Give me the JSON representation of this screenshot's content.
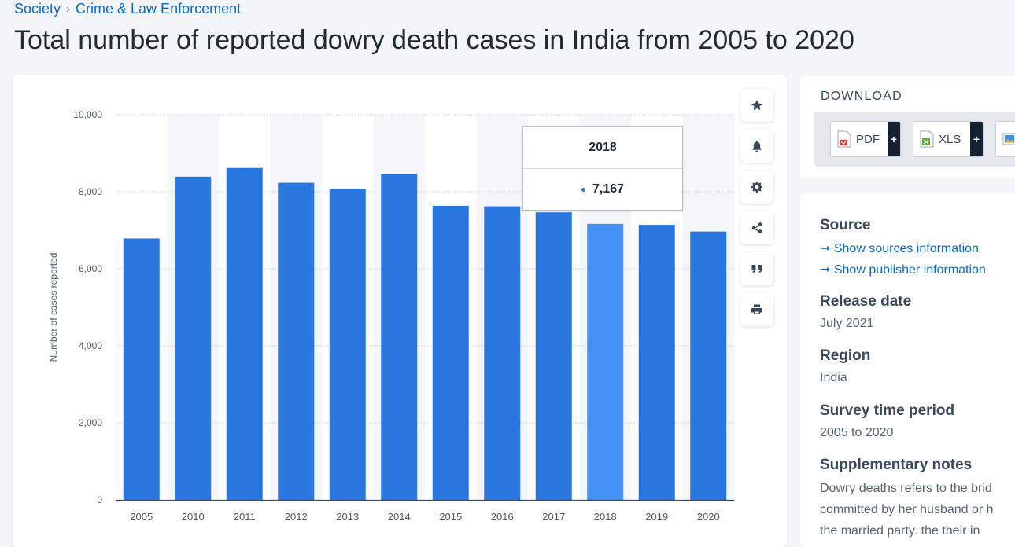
{
  "breadcrumb": {
    "items": [
      "Society",
      "Crime & Law Enforcement"
    ],
    "separator": "›"
  },
  "page_title": "Total number of reported dowry death cases in India from 2005 to 2020",
  "toolbar": {
    "icons": [
      "star-icon",
      "bell-icon",
      "gear-icon",
      "share-icon",
      "quote-icon",
      "print-icon"
    ]
  },
  "tooltip": {
    "year": "2018",
    "value": "7,167"
  },
  "download": {
    "title": "DOWNLOAD",
    "pdf_label": "PDF",
    "xls_label": "XLS",
    "plus": "+"
  },
  "info": {
    "source_title": "Source",
    "source_link": "➞ Show sources information",
    "publisher_link": "➞ Show publisher information",
    "release_title": "Release date",
    "release_value": "July 2021",
    "region_title": "Region",
    "region_value": "India",
    "period_title": "Survey time period",
    "period_value": "2005 to 2020",
    "notes_title": "Supplementary notes",
    "notes_line1": "Dowry deaths refers to the brid",
    "notes_line2": "committed by her husband or h",
    "notes_line3": "the married party. the their in"
  },
  "colors": {
    "bar": "#2b77e0",
    "bar_highlight": "#4490f5",
    "band": "#f4f6f9",
    "link": "#0a69c8"
  },
  "chart_data": {
    "type": "bar",
    "categories": [
      "2005",
      "2010",
      "2011",
      "2012",
      "2013",
      "2014",
      "2015",
      "2016",
      "2017",
      "2018",
      "2019",
      "2020"
    ],
    "values": [
      6787,
      8391,
      8618,
      8233,
      8083,
      8455,
      7634,
      7621,
      7466,
      7167,
      7141,
      6966
    ],
    "highlight_index": 9,
    "ylabel": "Number of cases reported",
    "ylim": [
      0,
      10000
    ],
    "yticks": [
      0,
      2000,
      4000,
      6000,
      8000,
      10000
    ],
    "ytick_labels": [
      "0",
      "2,000",
      "4,000",
      "6,000",
      "8,000",
      "10,000"
    ],
    "grid": true,
    "legend": "none"
  }
}
